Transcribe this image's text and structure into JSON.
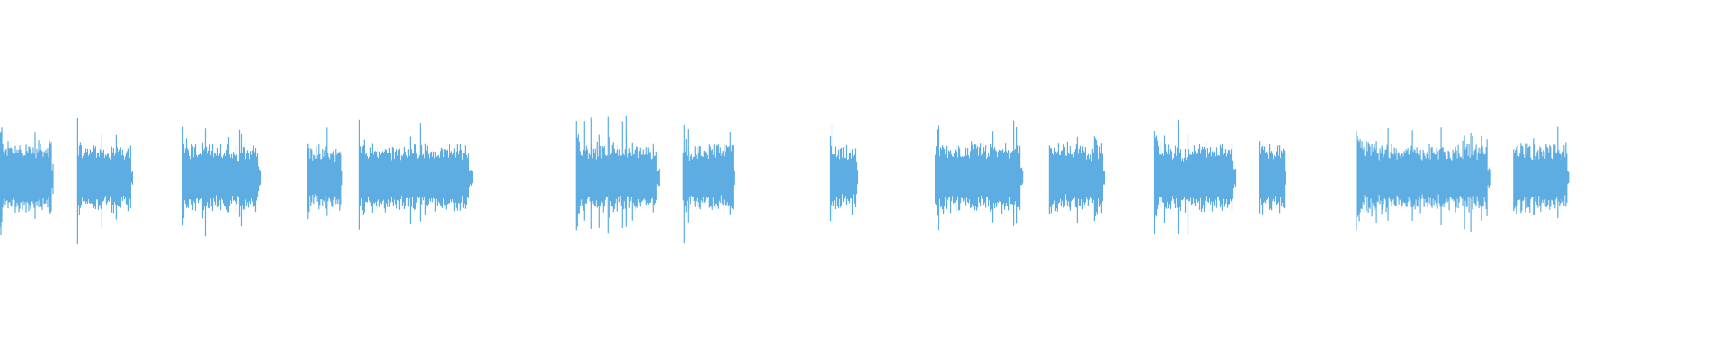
{
  "chart_data": {
    "type": "waveform",
    "title": "",
    "xlabel": "",
    "ylabel": "",
    "xlim": [
      0,
      1
    ],
    "ylim": [
      -1,
      1
    ],
    "grid": false,
    "legend": "none",
    "color": "#5dade2",
    "background": "#ffffff",
    "segments": [
      {
        "start": 0.0,
        "end": 0.031,
        "peak": 0.4,
        "rms": 0.16
      },
      {
        "start": 0.045,
        "end": 0.077,
        "peak": 0.32,
        "rms": 0.15
      },
      {
        "start": 0.106,
        "end": 0.151,
        "peak": 0.38,
        "rms": 0.15
      },
      {
        "start": 0.178,
        "end": 0.198,
        "peak": 0.32,
        "rms": 0.14
      },
      {
        "start": 0.208,
        "end": 0.274,
        "peak": 0.34,
        "rms": 0.15
      },
      {
        "start": 0.334,
        "end": 0.382,
        "peak": 0.39,
        "rms": 0.15
      },
      {
        "start": 0.396,
        "end": 0.426,
        "peak": 0.35,
        "rms": 0.15
      },
      {
        "start": 0.481,
        "end": 0.497,
        "peak": 0.32,
        "rms": 0.14
      },
      {
        "start": 0.542,
        "end": 0.593,
        "peak": 0.34,
        "rms": 0.15
      },
      {
        "start": 0.608,
        "end": 0.64,
        "peak": 0.34,
        "rms": 0.15
      },
      {
        "start": 0.669,
        "end": 0.716,
        "peak": 0.36,
        "rms": 0.15
      },
      {
        "start": 0.73,
        "end": 0.745,
        "peak": 0.35,
        "rms": 0.15
      },
      {
        "start": 0.786,
        "end": 0.864,
        "peak": 0.33,
        "rms": 0.15
      },
      {
        "start": 0.877,
        "end": 0.909,
        "peak": 0.33,
        "rms": 0.15
      }
    ]
  }
}
